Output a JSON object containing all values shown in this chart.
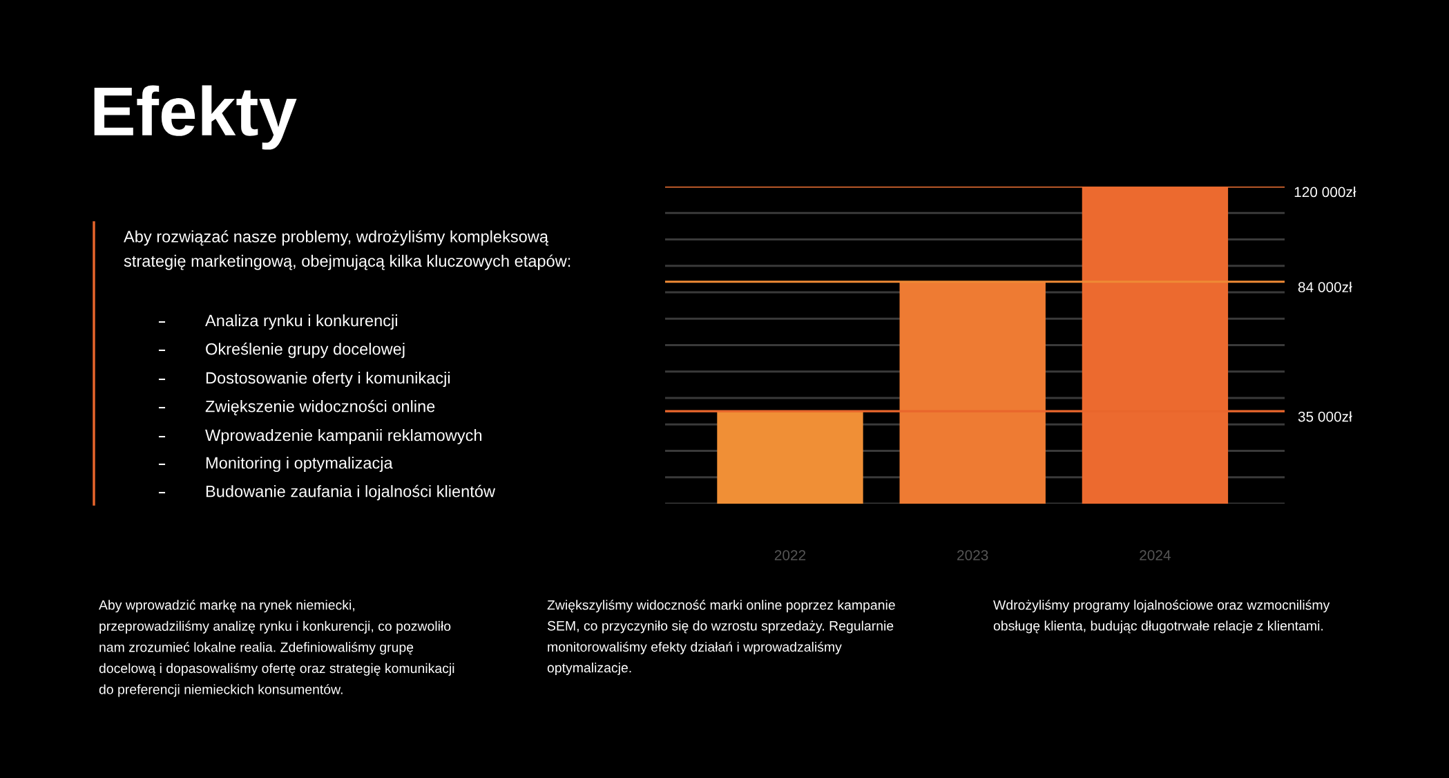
{
  "chart_data": {
    "type": "bar",
    "title": "Efekty",
    "categories": [
      "2022",
      "2023",
      "2024"
    ],
    "series": [
      {
        "colors": [
          "#f08f36",
          "#ee7b33",
          "#ec6a2f"
        ],
        "values": [
          35000,
          84000,
          120000
        ]
      }
    ],
    "ylim": [
      0,
      120000
    ],
    "yticks": [
      {
        "value": 0,
        "label": null
      },
      {
        "value": 10000,
        "label": null
      },
      {
        "value": 20000,
        "label": null
      },
      {
        "value": 30000,
        "label": null
      },
      {
        "value": 40000,
        "label": null
      },
      {
        "value": 50000,
        "label": null
      },
      {
        "value": 60000,
        "label": null
      },
      {
        "value": 70000,
        "label": null
      },
      {
        "value": 80000,
        "label": null
      },
      {
        "value": 90000,
        "label": null
      },
      {
        "value": 100000,
        "label": null
      },
      {
        "value": 110000,
        "label": null
      },
      {
        "value": 120000,
        "label": null
      }
    ],
    "grid": "y",
    "ref_lines": [
      {
        "axis": "y",
        "value": 120000,
        "label": "120 000zł",
        "color": "#ea6a2c"
      },
      {
        "axis": "y",
        "value": 84000,
        "label": "84 000zł",
        "color": "#ef8a35"
      },
      {
        "axis": "y",
        "value": 35000,
        "label": "35 000zł",
        "color": "#e9662c"
      }
    ],
    "annotations": [
      "Aby rozwiązać nasze problemy, wdrożyliśmy kompleksową\nstrategię marketingową, obejmującą kilka kluczowych etapów:",
      "Analiza rynku i konkurencji",
      "Określenie grupy docelowej",
      "Dostosowanie oferty i komunikacji",
      "Zwiększenie widoczności online",
      "Wprowadzenie kampanii reklamowych",
      "Monitoring i optymalizacja",
      "Budowanie zaufania i lojalności klientów",
      "Aby wprowadzić markę na rynek niemiecki,\nprzeprowadziliśmy analizę rynku i konkurencji, co pozwoliło\nnam zrozumieć lokalne realia. Zdefiniowaliśmy grupę\ndocelową i dopasowaliśmy ofertę oraz strategię komunikacji\ndo preferencji niemieckich konsumentów.",
      "Zwiększyliśmy widoczność marki online poprzez kampanie\nSEM, co przyczyniło się do wzrostu sprzedaży. Regularnie\nmonitorowaliśmy efekty działań i wprowadzaliśmy\noptymalizacje.",
      "Wdrożyliśmy programy lojalnościowe oraz wzmocniliśmy\nobsługę klienta, budując długotrwałe relacje z klientami."
    ]
  }
}
